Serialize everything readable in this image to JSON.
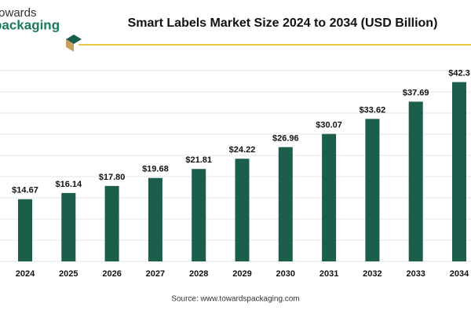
{
  "brand": {
    "line1": "towards",
    "line2": "packaging"
  },
  "chart_data": {
    "type": "bar",
    "title": "Smart Labels Market Size 2024 to 2034 (USD Billion)",
    "categories": [
      "2024",
      "2025",
      "2026",
      "2027",
      "2028",
      "2029",
      "2030",
      "2031",
      "2032",
      "2033",
      "2034"
    ],
    "values": [
      14.67,
      16.14,
      17.8,
      19.68,
      21.81,
      24.22,
      26.96,
      30.07,
      33.62,
      37.69,
      42.3
    ],
    "value_labels": [
      "$14.67",
      "$16.14",
      "$17.80",
      "$19.68",
      "$21.81",
      "$24.22",
      "$26.96",
      "$30.07",
      "$33.62",
      "$37.69",
      "$42.3"
    ],
    "color": "#1b5e4c",
    "ylim": [
      0,
      45
    ],
    "yticks": [
      0,
      5,
      10,
      15,
      20,
      25,
      30,
      35,
      40,
      45
    ],
    "grid": true,
    "source": "Source: www.towardspackaging.com"
  }
}
